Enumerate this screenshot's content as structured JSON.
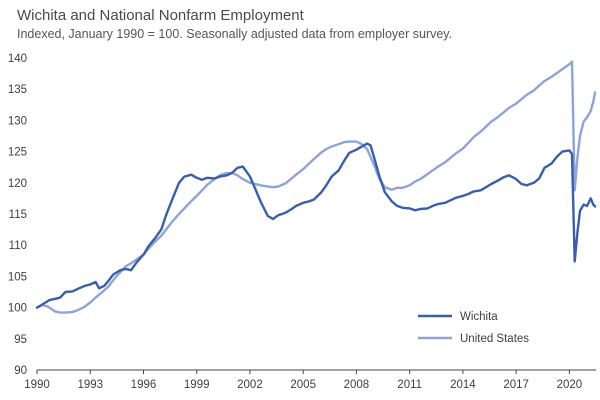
{
  "chart_data": {
    "type": "line",
    "title": "Wichita and National Nonfarm Employment",
    "subtitle": "Indexed, January 1990 = 100. Seasonally adjusted data from employer survey.",
    "xlabel": "",
    "ylabel": "",
    "xlim": [
      1990,
      2021.5
    ],
    "ylim": [
      90,
      140
    ],
    "x_ticks": [
      "1990",
      "1993",
      "1996",
      "1999",
      "2002",
      "2005",
      "2008",
      "2011",
      "2014",
      "2017",
      "2020"
    ],
    "y_ticks": [
      "90",
      "95",
      "100",
      "105",
      "110",
      "115",
      "120",
      "125",
      "130",
      "135",
      "140"
    ],
    "grid": false,
    "legend_position": "bottom-right",
    "series": [
      {
        "name": "Wichita",
        "color": "#3b5ea8",
        "points": [
          [
            1990.0,
            100.0
          ],
          [
            1990.3,
            100.5
          ],
          [
            1990.7,
            101.2
          ],
          [
            1991.0,
            101.4
          ],
          [
            1991.3,
            101.6
          ],
          [
            1991.6,
            102.5
          ],
          [
            1992.0,
            102.6
          ],
          [
            1992.3,
            103.0
          ],
          [
            1992.7,
            103.5
          ],
          [
            1993.0,
            103.7
          ],
          [
            1993.3,
            104.1
          ],
          [
            1993.5,
            103.1
          ],
          [
            1993.8,
            103.5
          ],
          [
            1994.0,
            104.2
          ],
          [
            1994.3,
            105.3
          ],
          [
            1994.7,
            106.0
          ],
          [
            1995.0,
            106.2
          ],
          [
            1995.3,
            106.0
          ],
          [
            1995.6,
            107.2
          ],
          [
            1996.0,
            108.5
          ],
          [
            1996.3,
            109.9
          ],
          [
            1996.7,
            111.3
          ],
          [
            1997.0,
            112.5
          ],
          [
            1997.3,
            115.0
          ],
          [
            1997.6,
            117.2
          ],
          [
            1998.0,
            120.0
          ],
          [
            1998.3,
            121.0
          ],
          [
            1998.7,
            121.3
          ],
          [
            1999.0,
            120.8
          ],
          [
            1999.3,
            120.5
          ],
          [
            1999.6,
            120.8
          ],
          [
            2000.0,
            120.7
          ],
          [
            2000.3,
            121.0
          ],
          [
            2000.7,
            121.2
          ],
          [
            2001.0,
            121.6
          ],
          [
            2001.3,
            122.4
          ],
          [
            2001.6,
            122.6
          ],
          [
            2002.0,
            121.0
          ],
          [
            2002.3,
            119.0
          ],
          [
            2002.6,
            117.0
          ],
          [
            2003.0,
            114.7
          ],
          [
            2003.3,
            114.2
          ],
          [
            2003.6,
            114.8
          ],
          [
            2004.0,
            115.2
          ],
          [
            2004.3,
            115.7
          ],
          [
            2004.6,
            116.3
          ],
          [
            2005.0,
            116.8
          ],
          [
            2005.3,
            117.0
          ],
          [
            2005.6,
            117.3
          ],
          [
            2006.0,
            118.4
          ],
          [
            2006.3,
            119.6
          ],
          [
            2006.6,
            121.0
          ],
          [
            2007.0,
            122.0
          ],
          [
            2007.3,
            123.5
          ],
          [
            2007.6,
            124.8
          ],
          [
            2008.0,
            125.3
          ],
          [
            2008.3,
            125.8
          ],
          [
            2008.6,
            126.3
          ],
          [
            2008.8,
            126.0
          ],
          [
            2009.0,
            124.0
          ],
          [
            2009.3,
            121.0
          ],
          [
            2009.6,
            118.5
          ],
          [
            2010.0,
            117.0
          ],
          [
            2010.3,
            116.3
          ],
          [
            2010.6,
            116.0
          ],
          [
            2011.0,
            115.9
          ],
          [
            2011.3,
            115.6
          ],
          [
            2011.6,
            115.8
          ],
          [
            2012.0,
            115.9
          ],
          [
            2012.3,
            116.3
          ],
          [
            2012.6,
            116.6
          ],
          [
            2013.0,
            116.8
          ],
          [
            2013.3,
            117.2
          ],
          [
            2013.6,
            117.6
          ],
          [
            2014.0,
            117.9
          ],
          [
            2014.3,
            118.2
          ],
          [
            2014.6,
            118.6
          ],
          [
            2015.0,
            118.8
          ],
          [
            2015.3,
            119.3
          ],
          [
            2015.6,
            119.8
          ],
          [
            2016.0,
            120.4
          ],
          [
            2016.3,
            120.9
          ],
          [
            2016.6,
            121.2
          ],
          [
            2017.0,
            120.6
          ],
          [
            2017.3,
            119.8
          ],
          [
            2017.6,
            119.6
          ],
          [
            2018.0,
            120.0
          ],
          [
            2018.3,
            120.7
          ],
          [
            2018.6,
            122.4
          ],
          [
            2019.0,
            123.1
          ],
          [
            2019.3,
            124.2
          ],
          [
            2019.6,
            125.0
          ],
          [
            2020.0,
            125.2
          ],
          [
            2020.15,
            124.6
          ],
          [
            2020.3,
            107.4
          ],
          [
            2020.45,
            112.0
          ],
          [
            2020.6,
            115.5
          ],
          [
            2020.8,
            116.5
          ],
          [
            2021.0,
            116.3
          ],
          [
            2021.2,
            117.5
          ],
          [
            2021.35,
            116.5
          ],
          [
            2021.45,
            116.2
          ]
        ]
      },
      {
        "name": "United States",
        "color": "#8fa3d6",
        "points": [
          [
            1990.0,
            100.0
          ],
          [
            1990.3,
            100.4
          ],
          [
            1990.6,
            100.2
          ],
          [
            1991.0,
            99.4
          ],
          [
            1991.3,
            99.2
          ],
          [
            1991.6,
            99.2
          ],
          [
            1992.0,
            99.3
          ],
          [
            1992.3,
            99.6
          ],
          [
            1992.6,
            100.0
          ],
          [
            1993.0,
            100.8
          ],
          [
            1993.3,
            101.6
          ],
          [
            1993.6,
            102.3
          ],
          [
            1994.0,
            103.3
          ],
          [
            1994.3,
            104.4
          ],
          [
            1994.6,
            105.4
          ],
          [
            1995.0,
            106.6
          ],
          [
            1995.3,
            107.1
          ],
          [
            1995.6,
            107.7
          ],
          [
            1996.0,
            108.5
          ],
          [
            1996.3,
            109.5
          ],
          [
            1996.6,
            110.4
          ],
          [
            1997.0,
            111.5
          ],
          [
            1997.3,
            112.6
          ],
          [
            1997.6,
            113.7
          ],
          [
            1998.0,
            115.0
          ],
          [
            1998.3,
            115.9
          ],
          [
            1998.6,
            116.8
          ],
          [
            1999.0,
            117.9
          ],
          [
            1999.3,
            118.8
          ],
          [
            1999.6,
            119.7
          ],
          [
            2000.0,
            120.6
          ],
          [
            2000.3,
            121.2
          ],
          [
            2000.6,
            121.5
          ],
          [
            2001.0,
            121.6
          ],
          [
            2001.3,
            121.2
          ],
          [
            2001.6,
            120.6
          ],
          [
            2002.0,
            120.0
          ],
          [
            2002.3,
            119.8
          ],
          [
            2002.6,
            119.6
          ],
          [
            2003.0,
            119.4
          ],
          [
            2003.3,
            119.3
          ],
          [
            2003.6,
            119.4
          ],
          [
            2004.0,
            119.9
          ],
          [
            2004.3,
            120.6
          ],
          [
            2004.6,
            121.3
          ],
          [
            2005.0,
            122.2
          ],
          [
            2005.3,
            123.0
          ],
          [
            2005.6,
            123.8
          ],
          [
            2006.0,
            124.8
          ],
          [
            2006.3,
            125.4
          ],
          [
            2006.6,
            125.8
          ],
          [
            2007.0,
            126.2
          ],
          [
            2007.3,
            126.5
          ],
          [
            2007.6,
            126.6
          ],
          [
            2008.0,
            126.6
          ],
          [
            2008.3,
            126.2
          ],
          [
            2008.6,
            125.4
          ],
          [
            2009.0,
            122.8
          ],
          [
            2009.3,
            120.6
          ],
          [
            2009.6,
            119.3
          ],
          [
            2010.0,
            118.9
          ],
          [
            2010.3,
            119.2
          ],
          [
            2010.6,
            119.2
          ],
          [
            2011.0,
            119.6
          ],
          [
            2011.3,
            120.2
          ],
          [
            2011.6,
            120.6
          ],
          [
            2012.0,
            121.4
          ],
          [
            2012.3,
            122.0
          ],
          [
            2012.6,
            122.6
          ],
          [
            2013.0,
            123.3
          ],
          [
            2013.3,
            124.0
          ],
          [
            2013.6,
            124.7
          ],
          [
            2014.0,
            125.5
          ],
          [
            2014.3,
            126.4
          ],
          [
            2014.6,
            127.3
          ],
          [
            2015.0,
            128.2
          ],
          [
            2015.3,
            129.0
          ],
          [
            2015.6,
            129.8
          ],
          [
            2016.0,
            130.6
          ],
          [
            2016.3,
            131.3
          ],
          [
            2016.6,
            132.0
          ],
          [
            2017.0,
            132.7
          ],
          [
            2017.3,
            133.4
          ],
          [
            2017.6,
            134.1
          ],
          [
            2018.0,
            134.8
          ],
          [
            2018.3,
            135.6
          ],
          [
            2018.6,
            136.3
          ],
          [
            2019.0,
            137.0
          ],
          [
            2019.3,
            137.6
          ],
          [
            2019.6,
            138.2
          ],
          [
            2020.0,
            139.0
          ],
          [
            2020.15,
            139.4
          ],
          [
            2020.3,
            118.8
          ],
          [
            2020.45,
            124.0
          ],
          [
            2020.6,
            127.5
          ],
          [
            2020.8,
            129.8
          ],
          [
            2021.0,
            130.5
          ],
          [
            2021.2,
            131.5
          ],
          [
            2021.35,
            133.0
          ],
          [
            2021.45,
            134.5
          ]
        ]
      }
    ]
  }
}
